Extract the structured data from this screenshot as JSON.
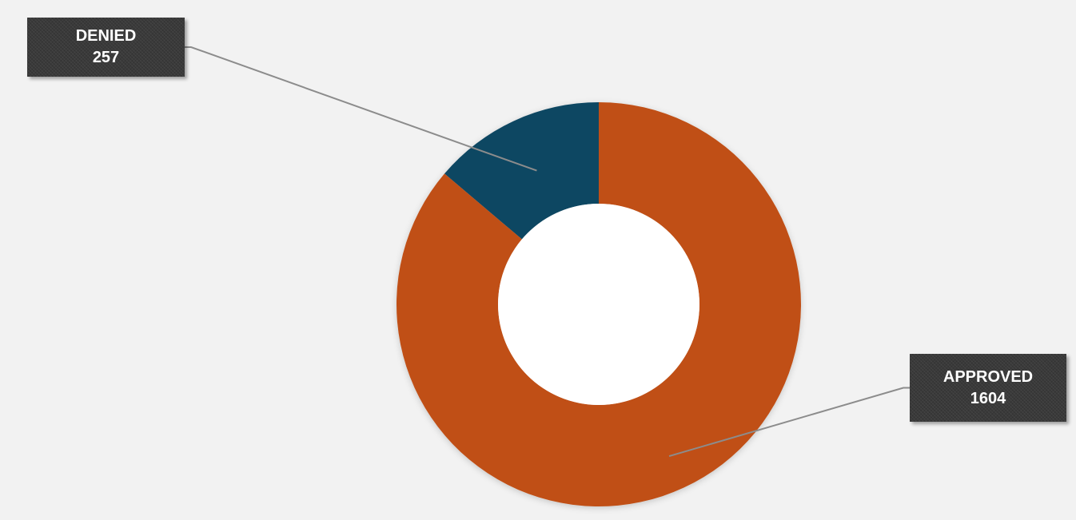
{
  "chart_data": {
    "type": "donut",
    "title": "",
    "categories": [
      "DENIED",
      "APPROVED"
    ],
    "values": [
      257,
      1604
    ],
    "colors": [
      "#0f4762",
      "#c05015"
    ],
    "labels": [
      {
        "name": "DENIED",
        "value": "257"
      },
      {
        "name": "APPROVED",
        "value": "1604"
      }
    ],
    "legend": "none",
    "start_angle_deg": 0
  }
}
